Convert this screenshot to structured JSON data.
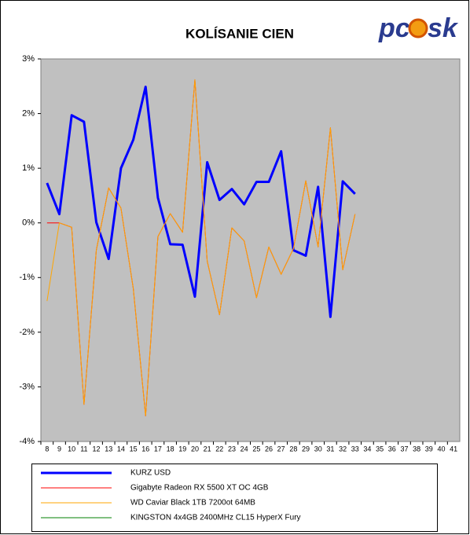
{
  "chart_data": {
    "type": "line",
    "title": "KOLÍSANIE CIEN",
    "logo": [
      "pc",
      "sk"
    ],
    "categories": [
      "8",
      "9",
      "10",
      "11",
      "12",
      "13",
      "14",
      "15",
      "16",
      "17",
      "18",
      "19",
      "20",
      "21",
      "22",
      "23",
      "24",
      "25",
      "26",
      "27",
      "28",
      "29",
      "30",
      "31",
      "32",
      "33",
      "34",
      "35",
      "36",
      "37",
      "38",
      "39",
      "40",
      "41"
    ],
    "series": [
      {
        "name": "KURZ USD",
        "color": "#0000ff",
        "width": 3,
        "values": [
          0.73,
          0.16,
          1.97,
          1.85,
          0.01,
          -0.66,
          1.0,
          1.52,
          2.49,
          0.46,
          -0.39,
          -0.4,
          -1.35,
          1.11,
          0.42,
          0.62,
          0.34,
          0.75,
          0.75,
          1.31,
          -0.5,
          -0.6,
          0.66,
          -1.72,
          0.76,
          0.53,
          null,
          null,
          null,
          null,
          null,
          null,
          null,
          null
        ]
      },
      {
        "name": "Gigabyte Radeon RX 5500 XT OC 4GB",
        "color": "#ff0000",
        "width": 1,
        "values": [
          0,
          0,
          -0.08,
          -3.32,
          -0.5,
          0.64,
          0.27,
          -1.2,
          -3.53,
          -0.25,
          0.17,
          -0.17,
          2.62,
          -0.7,
          -1.68,
          -0.09,
          -0.33,
          -1.37,
          -0.44,
          -0.94,
          -0.47,
          0.77,
          -0.44,
          1.74,
          -0.86,
          0.16,
          null,
          null,
          null,
          null,
          null,
          null,
          null,
          null
        ]
      },
      {
        "name": "WD Caviar Black 1TB 7200ot 64MB",
        "color": "#ffa500",
        "width": 1,
        "values": [
          -1.43,
          0,
          -0.08,
          -3.32,
          -0.5,
          0.64,
          0.27,
          -1.2,
          -3.53,
          -0.25,
          0.17,
          -0.17,
          2.62,
          -0.7,
          -1.68,
          -0.09,
          -0.33,
          -1.37,
          -0.44,
          -0.94,
          -0.47,
          0.77,
          -0.44,
          1.74,
          -0.86,
          0.16,
          null,
          null,
          null,
          null,
          null,
          null,
          null,
          null
        ]
      },
      {
        "name": "KINGSTON 4x4GB 2400MHz CL15 HyperX Fury",
        "color": "#008000",
        "width": 1,
        "values": [
          null,
          null,
          null,
          null,
          null,
          null,
          null,
          null,
          null,
          null,
          null,
          null,
          null,
          null,
          null,
          null,
          null,
          null,
          null,
          null,
          null,
          null,
          null,
          null,
          null,
          null,
          null,
          null,
          null,
          null,
          null,
          null,
          null,
          null
        ]
      }
    ],
    "ylim": [
      -4,
      3
    ],
    "yticks": [
      {
        "value": -4,
        "label": "-4%"
      },
      {
        "value": -3,
        "label": "-3%"
      },
      {
        "value": -2,
        "label": "-2%"
      },
      {
        "value": -1,
        "label": "-1%"
      },
      {
        "value": 0,
        "label": "0%"
      },
      {
        "value": 1,
        "label": "1%"
      },
      {
        "value": 2,
        "label": "2%"
      },
      {
        "value": 3,
        "label": "3%"
      }
    ],
    "grid": false
  }
}
